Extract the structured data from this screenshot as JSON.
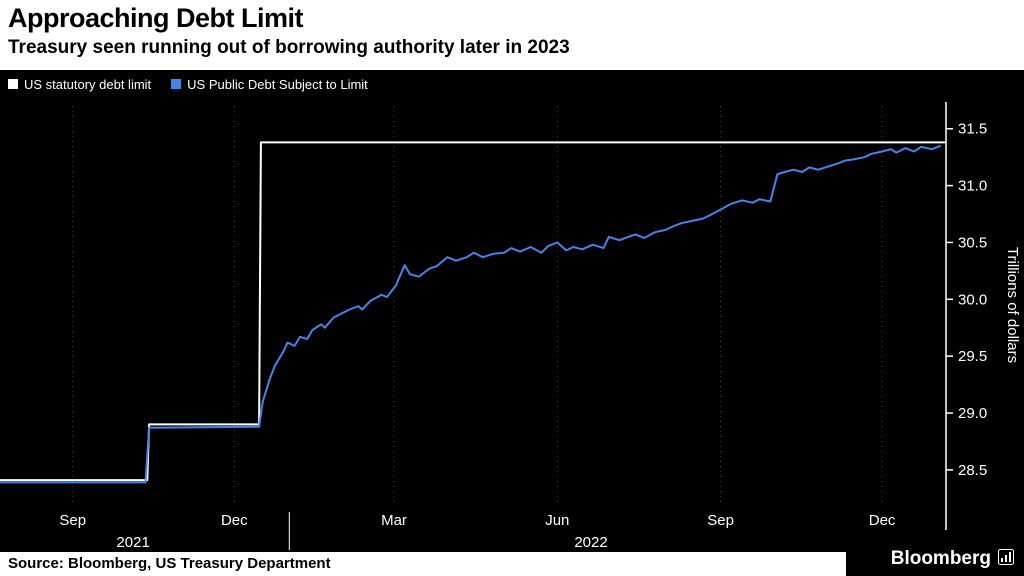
{
  "source": "Source: Bloomberg, US Treasury Department",
  "branding": {
    "wordmark": "Bloomberg"
  },
  "chart_data": {
    "type": "line",
    "title": "Approaching Debt Limit",
    "subtitle": "Treasury seen running out of borrowing authority later in 2023",
    "ylabel": "Trillions of dollars",
    "background": "#000000",
    "grid_color": "#3f3f3f",
    "axis_color": "#ffffff",
    "legend_position": "top-left",
    "x_domain": [
      "2021-07-22",
      "2023-01-06"
    ],
    "y_domain": [
      28.2,
      31.7
    ],
    "y_ticks": [
      28.5,
      29.0,
      29.5,
      30.0,
      30.5,
      31.0,
      31.5
    ],
    "x_ticks": [
      {
        "label": "Sep",
        "date": "2021-09-01"
      },
      {
        "label": "Dec",
        "date": "2021-12-01"
      },
      {
        "label": "Mar",
        "date": "2022-03-01"
      },
      {
        "label": "Jun",
        "date": "2022-06-01"
      },
      {
        "label": "Sep",
        "date": "2022-09-01"
      },
      {
        "label": "Dec",
        "date": "2022-12-01"
      }
    ],
    "x_year_labels": [
      {
        "label": "2021",
        "date": "2021-10-05"
      },
      {
        "label": "2022",
        "date": "2022-06-20"
      }
    ],
    "year_boundary_tick": "2022-01-01",
    "series": [
      {
        "name": "US statutory debt limit",
        "color": "#ffffff",
        "points": [
          [
            "2021-07-22",
            28.41
          ],
          [
            "2021-10-13",
            28.41
          ],
          [
            "2021-10-14",
            28.9
          ],
          [
            "2021-12-15",
            28.9
          ],
          [
            "2021-12-16",
            31.38
          ],
          [
            "2023-01-06",
            31.38
          ]
        ]
      },
      {
        "name": "US Public Debt Subject to Limit",
        "color": "#4386e8",
        "points": [
          [
            "2021-07-22",
            28.39
          ],
          [
            "2021-10-12",
            28.39
          ],
          [
            "2021-10-14",
            28.87
          ],
          [
            "2021-12-15",
            28.88
          ],
          [
            "2021-12-17",
            29.1
          ],
          [
            "2021-12-21",
            29.3
          ],
          [
            "2021-12-24",
            29.42
          ],
          [
            "2021-12-29",
            29.55
          ],
          [
            "2021-12-31",
            29.62
          ],
          [
            "2022-01-04",
            29.59
          ],
          [
            "2022-01-07",
            29.67
          ],
          [
            "2022-01-11",
            29.65
          ],
          [
            "2022-01-14",
            29.73
          ],
          [
            "2022-01-19",
            29.78
          ],
          [
            "2022-01-21",
            29.75
          ],
          [
            "2022-01-26",
            29.84
          ],
          [
            "2022-01-31",
            29.88
          ],
          [
            "2022-02-04",
            29.91
          ],
          [
            "2022-02-09",
            29.94
          ],
          [
            "2022-02-11",
            29.91
          ],
          [
            "2022-02-16",
            29.99
          ],
          [
            "2022-02-22",
            30.04
          ],
          [
            "2022-02-25",
            30.02
          ],
          [
            "2022-03-02",
            30.12
          ],
          [
            "2022-03-07",
            30.3
          ],
          [
            "2022-03-10",
            30.22
          ],
          [
            "2022-03-15",
            30.2
          ],
          [
            "2022-03-21",
            30.27
          ],
          [
            "2022-03-25",
            30.29
          ],
          [
            "2022-03-31",
            30.37
          ],
          [
            "2022-04-05",
            30.34
          ],
          [
            "2022-04-11",
            30.37
          ],
          [
            "2022-04-15",
            30.41
          ],
          [
            "2022-04-20",
            30.37
          ],
          [
            "2022-04-26",
            30.4
          ],
          [
            "2022-05-02",
            30.41
          ],
          [
            "2022-05-06",
            30.45
          ],
          [
            "2022-05-11",
            30.42
          ],
          [
            "2022-05-17",
            30.46
          ],
          [
            "2022-05-23",
            30.41
          ],
          [
            "2022-05-27",
            30.47
          ],
          [
            "2022-06-01",
            30.5
          ],
          [
            "2022-06-06",
            30.43
          ],
          [
            "2022-06-10",
            30.46
          ],
          [
            "2022-06-15",
            30.44
          ],
          [
            "2022-06-21",
            30.48
          ],
          [
            "2022-06-27",
            30.45
          ],
          [
            "2022-06-30",
            30.55
          ],
          [
            "2022-07-06",
            30.52
          ],
          [
            "2022-07-11",
            30.55
          ],
          [
            "2022-07-15",
            30.57
          ],
          [
            "2022-07-20",
            30.54
          ],
          [
            "2022-07-26",
            30.59
          ],
          [
            "2022-08-01",
            30.61
          ],
          [
            "2022-08-05",
            30.64
          ],
          [
            "2022-08-10",
            30.67
          ],
          [
            "2022-08-16",
            30.69
          ],
          [
            "2022-08-22",
            30.71
          ],
          [
            "2022-08-26",
            30.74
          ],
          [
            "2022-09-01",
            30.79
          ],
          [
            "2022-09-07",
            30.84
          ],
          [
            "2022-09-13",
            30.87
          ],
          [
            "2022-09-19",
            30.85
          ],
          [
            "2022-09-23",
            30.88
          ],
          [
            "2022-09-29",
            30.86
          ],
          [
            "2022-10-03",
            31.1
          ],
          [
            "2022-10-07",
            31.12
          ],
          [
            "2022-10-12",
            31.14
          ],
          [
            "2022-10-17",
            31.12
          ],
          [
            "2022-10-21",
            31.16
          ],
          [
            "2022-10-26",
            31.14
          ],
          [
            "2022-11-01",
            31.17
          ],
          [
            "2022-11-07",
            31.2
          ],
          [
            "2022-11-10",
            31.22
          ],
          [
            "2022-11-15",
            31.23
          ],
          [
            "2022-11-21",
            31.25
          ],
          [
            "2022-11-25",
            31.28
          ],
          [
            "2022-12-01",
            31.3
          ],
          [
            "2022-12-06",
            31.32
          ],
          [
            "2022-12-09",
            31.29
          ],
          [
            "2022-12-14",
            31.33
          ],
          [
            "2022-12-19",
            31.3
          ],
          [
            "2022-12-23",
            31.34
          ],
          [
            "2022-12-29",
            31.32
          ],
          [
            "2023-01-03",
            31.35
          ]
        ]
      }
    ]
  }
}
